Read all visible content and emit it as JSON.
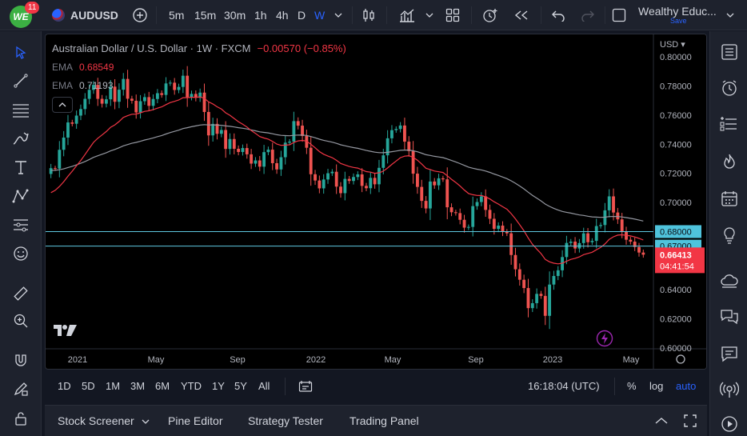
{
  "header": {
    "logo_text": "WE",
    "notifications": "11",
    "symbol": "AUDUSD",
    "intervals": [
      "5m",
      "15m",
      "30m",
      "1h",
      "4h",
      "D",
      "W"
    ],
    "active_interval": "W",
    "layout_name": "Wealthy Educ...",
    "layout_save": "Save"
  },
  "legend": {
    "title": "Australian Dollar / U.S. Dollar · 1W · FXCM",
    "change": "−0.00570 (−0.85%)",
    "ema1_label": "EMA",
    "ema1_value": "0.68549",
    "ema2_label": "EMA",
    "ema2_value": "0.71193"
  },
  "price_axis": {
    "currency": "USD",
    "ticks": [
      "0.80000",
      "0.78000",
      "0.76000",
      "0.74000",
      "0.72000",
      "0.70000",
      "0.68000",
      "0.67000",
      "0.66000",
      "0.64000",
      "0.62000",
      "0.60000"
    ],
    "tag_680": "0.68000",
    "tag_670": "0.67000",
    "last_price": "0.66413",
    "countdown": "04:41:54"
  },
  "time_axis": {
    "labels": [
      "2021",
      "May",
      "Sep",
      "2022",
      "May",
      "Sep",
      "2023",
      "May"
    ]
  },
  "range_bar": {
    "ranges": [
      "1D",
      "5D",
      "1M",
      "3M",
      "6M",
      "YTD",
      "1Y",
      "5Y",
      "All"
    ],
    "clock": "16:18:04 (UTC)",
    "percent": "%",
    "log": "log",
    "auto": "auto"
  },
  "bottom_panel": {
    "tabs": [
      "Stock Screener",
      "Pine Editor",
      "Strategy Tester",
      "Trading Panel"
    ]
  },
  "colors": {
    "up": "#26a69a",
    "down": "#ef5350",
    "ema_fast": "#f23645",
    "ema_slow": "#9598a1",
    "hline": "#5ec8e0",
    "accent": "#2962ff"
  },
  "chart_data": {
    "type": "candlestick",
    "title": "Australian Dollar / U.S. Dollar · 1W · FXCM",
    "ylim": [
      0.6,
      0.81
    ],
    "x_labels": [
      "2021",
      "May",
      "Sep",
      "2022",
      "May",
      "Sep",
      "2023",
      "May"
    ],
    "hlines": [
      0.67,
      0.68
    ],
    "candles_close": [
      0.7236,
      0.7233,
      0.7362,
      0.7446,
      0.755,
      0.7541,
      0.7597,
      0.7642,
      0.7712,
      0.7774,
      0.7808,
      0.7712,
      0.7679,
      0.7709,
      0.7796,
      0.7692,
      0.7775,
      0.7849,
      0.7713,
      0.7699,
      0.7619,
      0.7696,
      0.7724,
      0.7664,
      0.7711,
      0.7751,
      0.7739,
      0.7818,
      0.7823,
      0.7773,
      0.7794,
      0.7871,
      0.7724,
      0.7746,
      0.7719,
      0.7755,
      0.7622,
      0.7461,
      0.754,
      0.7472,
      0.7498,
      0.7368,
      0.7436,
      0.7369,
      0.7347,
      0.7374,
      0.7331,
      0.7267,
      0.7289,
      0.7246,
      0.7346,
      0.7363,
      0.727,
      0.7227,
      0.7311,
      0.7411,
      0.7418,
      0.7559,
      0.7528,
      0.7457,
      0.7376,
      0.7194,
      0.7151,
      0.7097,
      0.7158,
      0.7201,
      0.7211,
      0.7109,
      0.7064,
      0.7162,
      0.7148,
      0.7175,
      0.7193,
      0.7114,
      0.7098,
      0.7169,
      0.7125,
      0.7238,
      0.7324,
      0.7441,
      0.7497,
      0.7505,
      0.7529,
      0.7418,
      0.7353,
      0.7198,
      0.7107,
      0.7011,
      0.6959,
      0.7144,
      0.7118,
      0.7166,
      0.7159,
      0.6967,
      0.6933,
      0.6927,
      0.6881,
      0.6827,
      0.6832,
      0.6975,
      0.7003,
      0.7042,
      0.6949,
      0.6888,
      0.6819,
      0.6841,
      0.6799,
      0.6788,
      0.6639,
      0.6541,
      0.6469,
      0.6412,
      0.6274,
      0.6308,
      0.6372,
      0.6358,
      0.6221,
      0.6436,
      0.6495,
      0.6534,
      0.6625,
      0.6722,
      0.6731,
      0.6684,
      0.6721,
      0.6788,
      0.6727,
      0.6736,
      0.6838,
      0.6845,
      0.6946,
      0.7042,
      0.6931,
      0.6884,
      0.6799,
      0.6744,
      0.6731,
      0.6694,
      0.6656,
      0.6641
    ]
  }
}
